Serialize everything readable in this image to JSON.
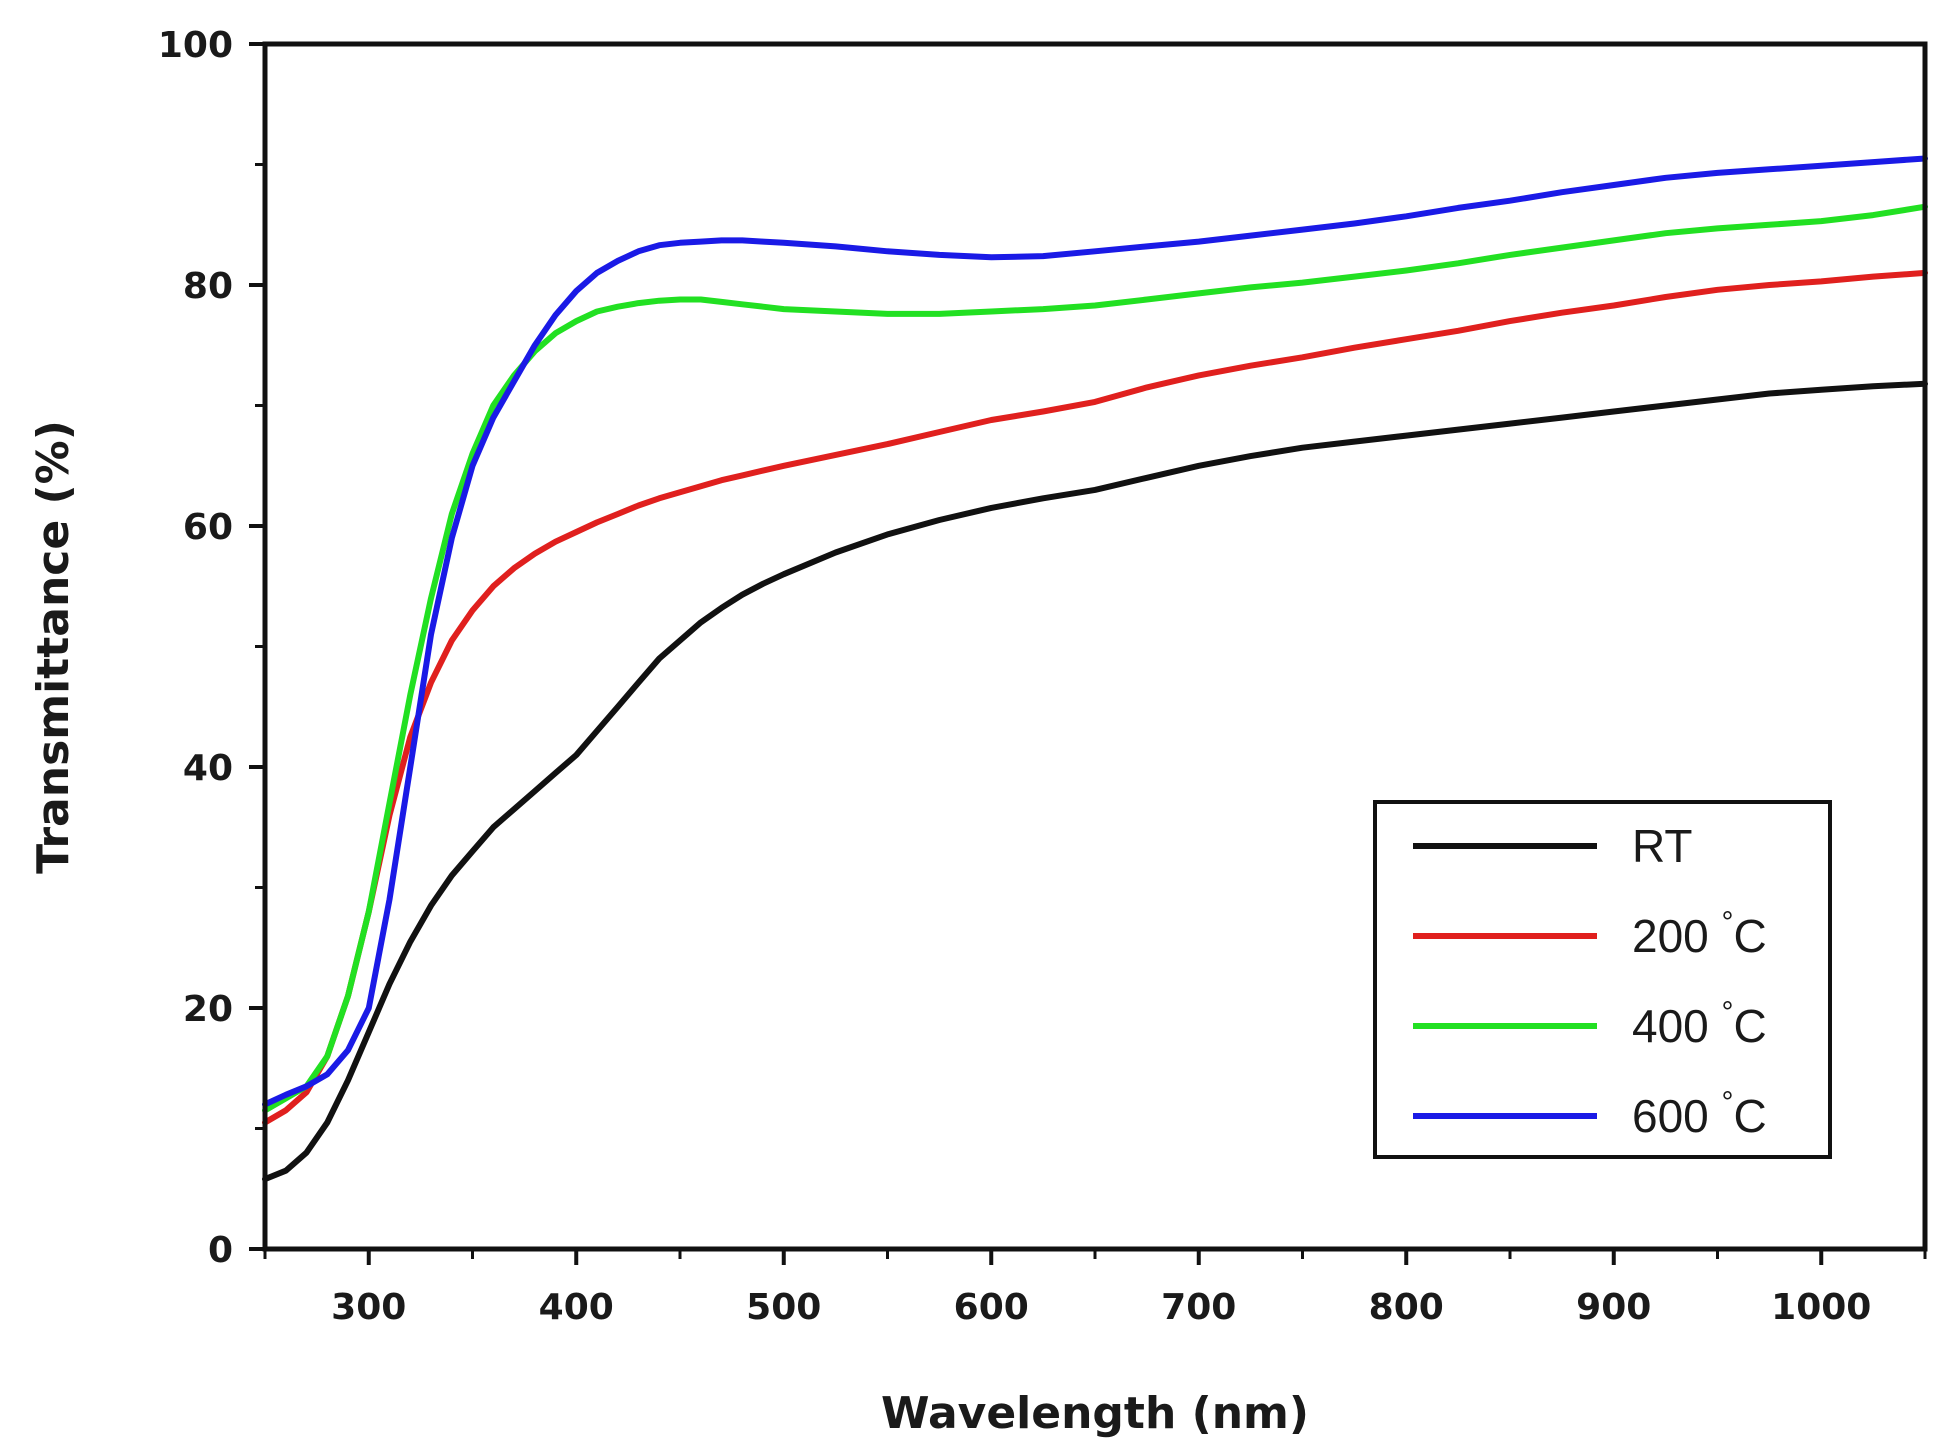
{
  "chart_data": {
    "type": "line",
    "xlabel": "Wavelength (nm)",
    "ylabel": "Transmittance (%)",
    "xlim": [
      250,
      1050
    ],
    "ylim": [
      0,
      100
    ],
    "xticks": [
      "300",
      "400",
      "500",
      "600",
      "700",
      "800",
      "900",
      "1000"
    ],
    "xtick_values": [
      300,
      400,
      500,
      600,
      700,
      800,
      900,
      1000
    ],
    "yticks": [
      "0",
      "20",
      "40",
      "60",
      "80",
      "100"
    ],
    "ytick_values": [
      0,
      20,
      40,
      60,
      80,
      100
    ],
    "grid": false,
    "legend_position": "bottom-right",
    "x": [
      250,
      260,
      270,
      280,
      290,
      300,
      310,
      320,
      330,
      340,
      350,
      360,
      370,
      380,
      390,
      400,
      410,
      420,
      430,
      440,
      450,
      460,
      470,
      480,
      490,
      500,
      525,
      550,
      575,
      600,
      625,
      650,
      675,
      700,
      725,
      750,
      775,
      800,
      825,
      850,
      875,
      900,
      925,
      950,
      975,
      1000,
      1025,
      1050
    ],
    "series": [
      {
        "name": "RT",
        "color": "#111111",
        "values": [
          5.8,
          6.5,
          8.0,
          10.5,
          14.0,
          18.0,
          22.0,
          25.5,
          28.5,
          31.0,
          33.0,
          35.0,
          36.5,
          38.0,
          39.5,
          41.0,
          43.0,
          45.0,
          47.0,
          49.0,
          50.5,
          52.0,
          53.2,
          54.3,
          55.2,
          56.0,
          57.8,
          59.3,
          60.5,
          61.5,
          62.3,
          63.0,
          64.0,
          65.0,
          65.8,
          66.5,
          67.0,
          67.5,
          68.0,
          68.5,
          69.0,
          69.5,
          70.0,
          70.5,
          71.0,
          71.3,
          71.6,
          71.8
        ]
      },
      {
        "name": "200 °C",
        "color": "#e0201e",
        "values": [
          10.5,
          11.5,
          13.0,
          16.0,
          21.0,
          28.0,
          36.0,
          42.5,
          47.0,
          50.5,
          53.0,
          55.0,
          56.5,
          57.7,
          58.7,
          59.5,
          60.3,
          61.0,
          61.7,
          62.3,
          62.8,
          63.3,
          63.8,
          64.2,
          64.6,
          65.0,
          65.9,
          66.8,
          67.8,
          68.8,
          69.5,
          70.3,
          71.5,
          72.5,
          73.3,
          74.0,
          74.8,
          75.5,
          76.2,
          77.0,
          77.7,
          78.3,
          79.0,
          79.6,
          80.0,
          80.3,
          80.7,
          81.0
        ]
      },
      {
        "name": "400 °C",
        "color": "#22e022",
        "values": [
          11.5,
          12.5,
          13.5,
          16.0,
          21.0,
          28.0,
          37.0,
          46.0,
          54.0,
          61.0,
          66.0,
          70.0,
          72.5,
          74.5,
          76.0,
          77.0,
          77.8,
          78.2,
          78.5,
          78.7,
          78.8,
          78.8,
          78.6,
          78.4,
          78.2,
          78.0,
          77.8,
          77.6,
          77.6,
          77.8,
          78.0,
          78.3,
          78.8,
          79.3,
          79.8,
          80.2,
          80.7,
          81.2,
          81.8,
          82.5,
          83.1,
          83.7,
          84.3,
          84.7,
          85.0,
          85.3,
          85.8,
          86.5
        ]
      },
      {
        "name": "600 °C",
        "color": "#1a1ae6",
        "values": [
          12.0,
          12.8,
          13.5,
          14.5,
          16.5,
          20.0,
          29.0,
          40.0,
          51.0,
          59.0,
          65.0,
          69.0,
          72.0,
          75.0,
          77.5,
          79.5,
          81.0,
          82.0,
          82.8,
          83.3,
          83.5,
          83.6,
          83.7,
          83.7,
          83.6,
          83.5,
          83.2,
          82.8,
          82.5,
          82.3,
          82.4,
          82.8,
          83.2,
          83.6,
          84.1,
          84.6,
          85.1,
          85.7,
          86.4,
          87.0,
          87.7,
          88.3,
          88.9,
          89.3,
          89.6,
          89.9,
          90.2,
          90.5
        ]
      }
    ]
  }
}
